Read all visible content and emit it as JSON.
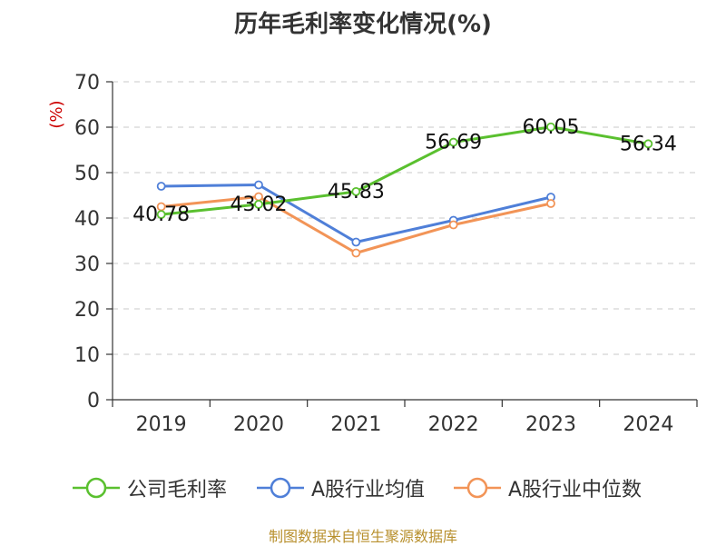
{
  "chart_data": {
    "type": "line",
    "title": "历年毛利率变化情况(%)",
    "ylabel": "(%)",
    "categories": [
      "2019",
      "2020",
      "2021",
      "2022",
      "2023",
      "2024"
    ],
    "ylim": [
      0,
      70
    ],
    "yticks": [
      "0",
      "10",
      "20",
      "30",
      "40",
      "50",
      "60",
      "70"
    ],
    "grid": true,
    "legend_position": "bottom",
    "series": [
      {
        "name": "公司毛利率",
        "color": "#5ac02f",
        "values": [
          40.78,
          43.02,
          45.83,
          56.69,
          60.05,
          56.34
        ],
        "labels": [
          "40.78",
          "43.02",
          "45.83",
          "56.69",
          "60.05",
          "56.34"
        ]
      },
      {
        "name": "A股行业均值",
        "color": "#4f7fd8",
        "values": [
          47.0,
          47.3,
          34.7,
          39.5,
          44.6,
          null
        ]
      },
      {
        "name": "A股行业中位数",
        "color": "#f29457",
        "values": [
          42.5,
          44.7,
          32.3,
          38.5,
          43.2,
          null
        ]
      }
    ]
  },
  "source": "制图数据来自恒生聚源数据库"
}
